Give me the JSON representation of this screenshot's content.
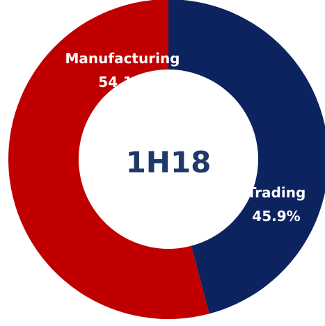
{
  "chart_data": {
    "type": "pie",
    "center_label": "1H18",
    "categories": [
      "Trading",
      "Manufacturing"
    ],
    "values": [
      45.9,
      54.1
    ],
    "value_labels": [
      "45.9%",
      "54.1%"
    ],
    "colors": [
      "#0d2360",
      "#c00000"
    ],
    "center_label_color": "#1f3a68",
    "donut": true
  }
}
